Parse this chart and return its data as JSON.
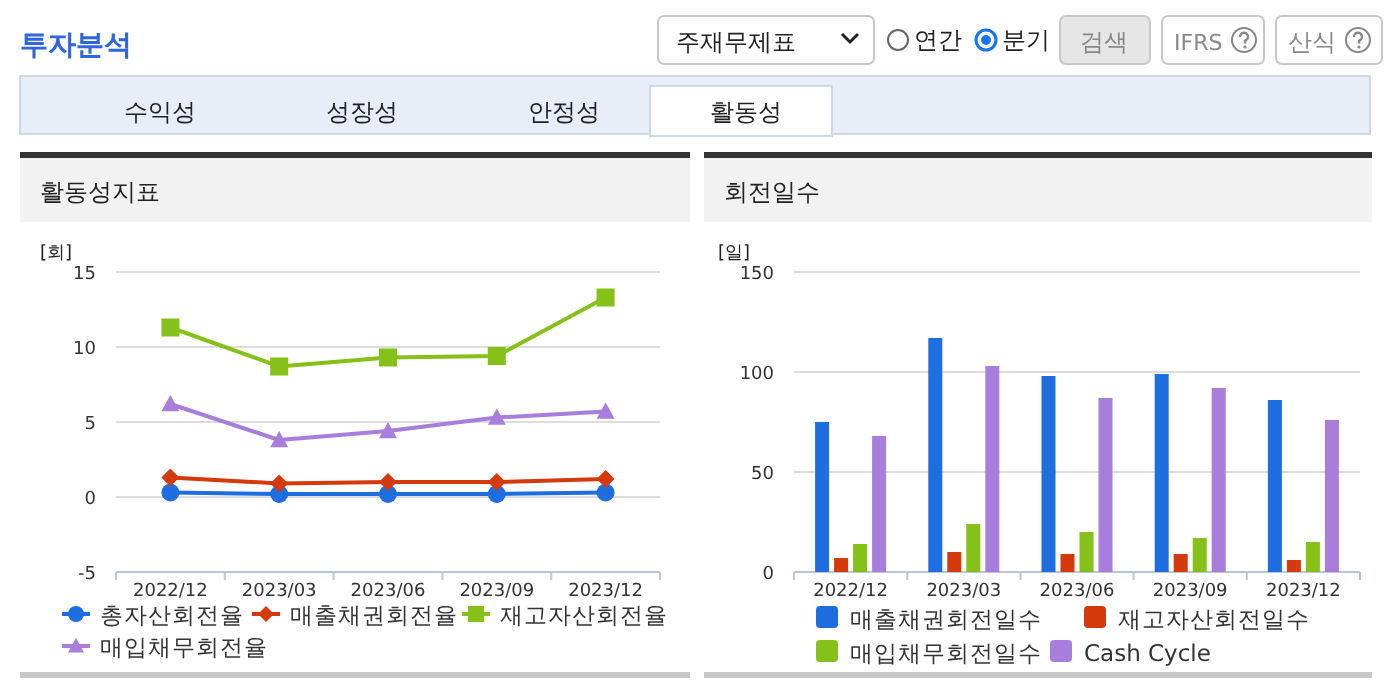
{
  "chart_data": [
    {
      "type": "line",
      "title": "활동성지표",
      "ylabel": "[회]",
      "categories": [
        "2022/12",
        "2023/03",
        "2023/06",
        "2023/09",
        "2023/12"
      ],
      "ylim": [
        -5,
        15
      ],
      "yticks": [
        -5,
        0,
        5,
        10,
        15
      ],
      "grid": "y",
      "legend": "bottom",
      "annotations": [
        "투자분석",
        "주재무제표",
        "연간",
        "분기",
        "검색",
        "IFRS",
        "산식",
        "수익성",
        "성장성",
        "안정성",
        "활동성"
      ],
      "series": [
        {
          "name": "총자산회전율",
          "color": "#1f6ee0",
          "marker": "circle",
          "values": [
            0.3,
            0.2,
            0.2,
            0.2,
            0.3
          ]
        },
        {
          "name": "매출채권회전율",
          "color": "#d43a0c",
          "marker": "diamond",
          "values": [
            1.3,
            0.9,
            1.0,
            1.0,
            1.2
          ]
        },
        {
          "name": "재고자산회전율",
          "color": "#86c11a",
          "marker": "square",
          "values": [
            11.3,
            8.7,
            9.3,
            9.4,
            13.3
          ]
        },
        {
          "name": "매입채무회전율",
          "color": "#a87ddb",
          "marker": "triangle",
          "values": [
            6.2,
            3.8,
            4.4,
            5.3,
            5.7
          ]
        }
      ]
    },
    {
      "type": "bar",
      "title": "회전일수",
      "ylabel": "[일]",
      "categories": [
        "2022/12",
        "2023/03",
        "2023/06",
        "2023/09",
        "2023/12"
      ],
      "ylim": [
        0,
        150
      ],
      "yticks": [
        0,
        50,
        100,
        150
      ],
      "grid": "y",
      "legend": "bottom",
      "series": [
        {
          "name": "매출채권회전일수",
          "color": "#1f6ee0",
          "values": [
            75,
            117,
            98,
            99,
            86
          ]
        },
        {
          "name": "재고자산회전일수",
          "color": "#d43a0c",
          "values": [
            7,
            10,
            9,
            9,
            6
          ]
        },
        {
          "name": "매입채무회전일수",
          "color": "#86c11a",
          "values": [
            14,
            24,
            20,
            17,
            15
          ]
        },
        {
          "name": "Cash Cycle",
          "color": "#a87ddb",
          "values": [
            68,
            103,
            87,
            92,
            76
          ]
        }
      ]
    }
  ]
}
